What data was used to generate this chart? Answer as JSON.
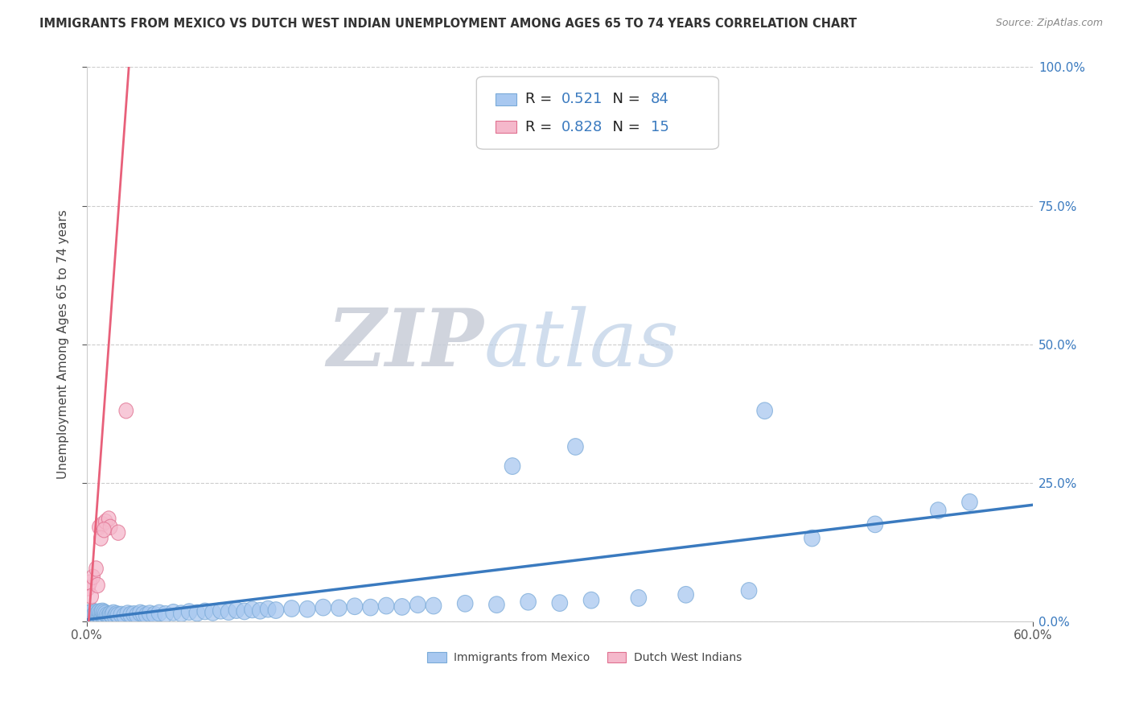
{
  "title": "IMMIGRANTS FROM MEXICO VS DUTCH WEST INDIAN UNEMPLOYMENT AMONG AGES 65 TO 74 YEARS CORRELATION CHART",
  "source": "Source: ZipAtlas.com",
  "ylabel_label": "Unemployment Among Ages 65 to 74 years",
  "legend_blue_label": "Immigrants from Mexico",
  "legend_pink_label": "Dutch West Indians",
  "blue_R": "0.521",
  "blue_N": "84",
  "pink_R": "0.828",
  "pink_N": "15",
  "watermark_ZIP": "ZIP",
  "watermark_atlas": "atlas",
  "background_color": "#ffffff",
  "blue_color": "#a8c8f0",
  "blue_edge_color": "#7aaad8",
  "blue_line_color": "#3a7abf",
  "pink_color": "#f5b8cb",
  "pink_edge_color": "#e07090",
  "pink_line_color": "#e8607a",
  "title_color": "#333333",
  "grid_color": "#cccccc",
  "legend_R_color": "#3a7abf",
  "right_tick_color": "#3a7abf",
  "blue_scatter_x": [
    0.001,
    0.002,
    0.002,
    0.003,
    0.003,
    0.004,
    0.004,
    0.005,
    0.005,
    0.006,
    0.006,
    0.007,
    0.007,
    0.008,
    0.008,
    0.009,
    0.009,
    0.01,
    0.01,
    0.011,
    0.011,
    0.012,
    0.012,
    0.013,
    0.014,
    0.015,
    0.015,
    0.016,
    0.017,
    0.018,
    0.019,
    0.02,
    0.022,
    0.024,
    0.026,
    0.028,
    0.03,
    0.032,
    0.034,
    0.036,
    0.038,
    0.04,
    0.043,
    0.046,
    0.05,
    0.055,
    0.06,
    0.065,
    0.07,
    0.075,
    0.08,
    0.085,
    0.09,
    0.095,
    0.1,
    0.105,
    0.11,
    0.115,
    0.12,
    0.13,
    0.14,
    0.15,
    0.16,
    0.17,
    0.18,
    0.19,
    0.2,
    0.21,
    0.22,
    0.24,
    0.26,
    0.28,
    0.3,
    0.32,
    0.35,
    0.38,
    0.42,
    0.46,
    0.5,
    0.54,
    0.27,
    0.31,
    0.43,
    0.56
  ],
  "blue_scatter_y": [
    0.01,
    0.008,
    0.015,
    0.005,
    0.012,
    0.01,
    0.018,
    0.007,
    0.013,
    0.008,
    0.016,
    0.006,
    0.014,
    0.009,
    0.017,
    0.007,
    0.015,
    0.01,
    0.018,
    0.008,
    0.016,
    0.006,
    0.014,
    0.011,
    0.009,
    0.007,
    0.013,
    0.011,
    0.015,
    0.009,
    0.013,
    0.011,
    0.012,
    0.01,
    0.014,
    0.012,
    0.013,
    0.011,
    0.015,
    0.013,
    0.011,
    0.014,
    0.012,
    0.015,
    0.013,
    0.016,
    0.014,
    0.017,
    0.015,
    0.018,
    0.016,
    0.019,
    0.017,
    0.02,
    0.018,
    0.021,
    0.019,
    0.022,
    0.02,
    0.023,
    0.022,
    0.025,
    0.024,
    0.027,
    0.025,
    0.028,
    0.026,
    0.03,
    0.028,
    0.032,
    0.03,
    0.035,
    0.033,
    0.038,
    0.042,
    0.048,
    0.055,
    0.15,
    0.175,
    0.2,
    0.28,
    0.315,
    0.38,
    0.215
  ],
  "pink_scatter_x": [
    0.001,
    0.002,
    0.004,
    0.006,
    0.008,
    0.01,
    0.012,
    0.014,
    0.003,
    0.007,
    0.015,
    0.009,
    0.011,
    0.02,
    0.025
  ],
  "pink_scatter_y": [
    0.06,
    0.07,
    0.08,
    0.095,
    0.17,
    0.175,
    0.18,
    0.185,
    0.045,
    0.065,
    0.17,
    0.15,
    0.165,
    0.16,
    0.38
  ],
  "xlim": [
    0.0,
    0.6
  ],
  "ylim": [
    0.0,
    1.0
  ],
  "blue_trend": [
    0.0,
    0.003,
    0.6,
    0.21
  ],
  "pink_trend": [
    0.0,
    -0.05,
    0.028,
    1.05
  ],
  "yticks": [
    0.0,
    0.25,
    0.5,
    0.75,
    1.0
  ],
  "ytick_labels": [
    "0.0%",
    "25.0%",
    "50.0%",
    "75.0%",
    "100.0%"
  ],
  "xtick_labels": [
    "0.0%",
    "60.0%"
  ],
  "xticks": [
    0.0,
    0.6
  ]
}
